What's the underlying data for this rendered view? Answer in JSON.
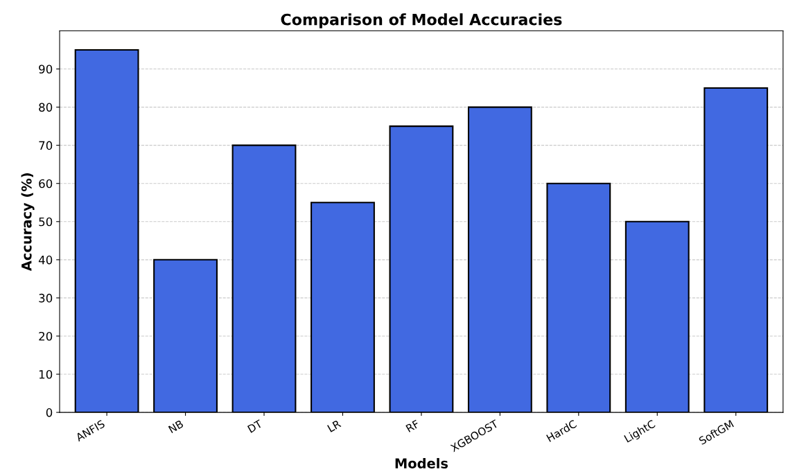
{
  "chart_data": {
    "type": "bar",
    "title": "Comparison of Model Accuracies",
    "xlabel": "Models",
    "ylabel": "Accuracy (%)",
    "categories": [
      "ANFIS",
      "NB",
      "DT",
      "LR",
      "RF",
      "XGBOOST",
      "HardC",
      "LightC",
      "SoftGM"
    ],
    "values": [
      95,
      40,
      70,
      55,
      75,
      80,
      60,
      50,
      85
    ],
    "color": "#4169e1",
    "ylim": [
      0,
      100
    ],
    "yticks": [
      0,
      10,
      20,
      30,
      40,
      50,
      60,
      70,
      80,
      90
    ],
    "grid": "y"
  }
}
